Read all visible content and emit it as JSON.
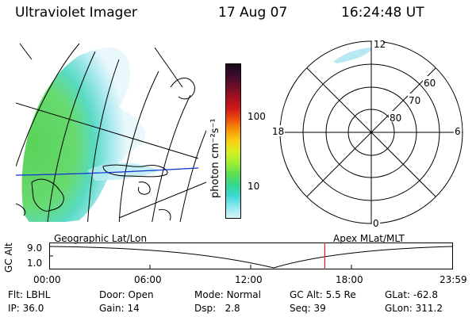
{
  "header": {
    "instrument": "Ultraviolet Imager",
    "date": "17 Aug 07",
    "time": "16:24:48 UT"
  },
  "colorbar": {
    "unit_label": "photon cm⁻²s⁻¹",
    "tick_labels": [
      "100",
      "10"
    ],
    "colors": [
      "#1a0a1a",
      "#3b0b2e",
      "#6a0d2a",
      "#a01020",
      "#d01a18",
      "#f0500c",
      "#f89808",
      "#f8d010",
      "#d8f020",
      "#a0f030",
      "#60e050",
      "#30d890",
      "#40d8d8",
      "#90e8f0",
      "#d8f4f8"
    ]
  },
  "polar_plot": {
    "mlt_labels": {
      "top": "12",
      "left": "18",
      "right": "6",
      "bottom": "0"
    },
    "lat_labels": [
      "60",
      "70",
      "80"
    ]
  },
  "map_panel": {
    "projection_label": "Geographic Lat/Lon"
  },
  "altitude_panel": {
    "ylabel": "GC Alt",
    "y_ticks": [
      "9.0",
      "1.0"
    ],
    "x_ticks": [
      "00:00",
      "06:00",
      "12:00",
      "18:00",
      "23:59"
    ],
    "coord_label": "Apex MLat/MLT",
    "current_time_fraction": 0.6839
  },
  "footer": {
    "row1": [
      {
        "label": "Flt:",
        "value": "LBHL"
      },
      {
        "label": "Door:",
        "value": "Open"
      },
      {
        "label": "Mode:",
        "value": "Normal"
      },
      {
        "label": "GC Alt:",
        "value": "5.5 Re"
      },
      {
        "label": "GLat:",
        "value": "-62.8"
      }
    ],
    "row2": [
      {
        "label": "IP:",
        "value": "36.0"
      },
      {
        "label": "Gain:",
        "value": "14"
      },
      {
        "label": "Dsp:",
        "value": "2.8"
      },
      {
        "label": "Seq:",
        "value": "39"
      },
      {
        "label": "GLon:",
        "value": "311.2"
      }
    ]
  }
}
